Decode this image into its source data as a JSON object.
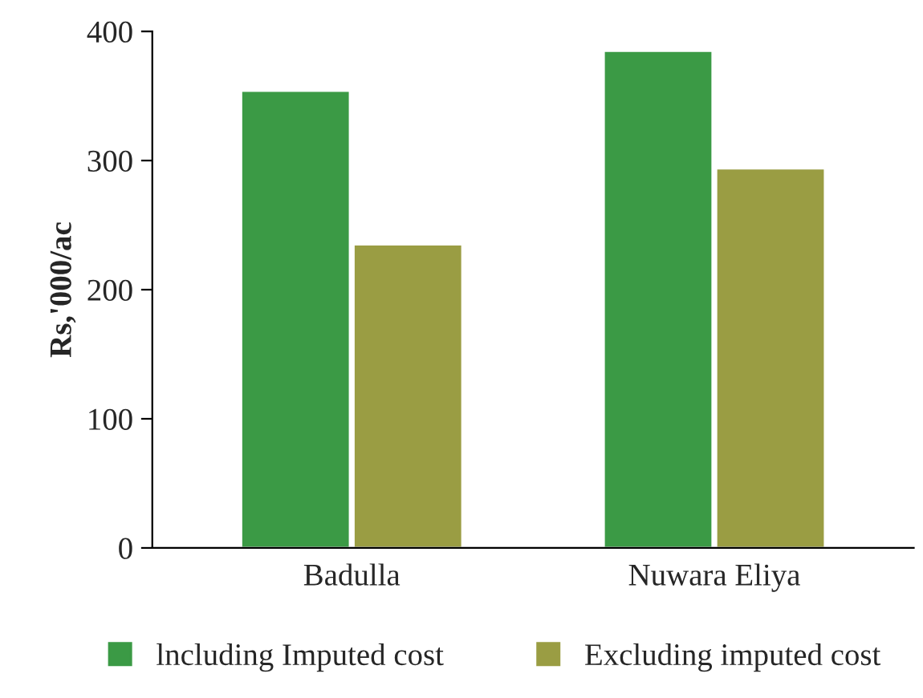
{
  "chart_data": {
    "type": "bar",
    "ylabel": "Rs,'000/ac",
    "categories": [
      "Badulla",
      "Nuwara Eliya"
    ],
    "series": [
      {
        "name": "lncluding Imputed cost",
        "color": "#3b9a45",
        "values": [
          354,
          385
        ]
      },
      {
        "name": "Excluding imputed cost",
        "color": "#9a9d43",
        "values": [
          235,
          294
        ]
      }
    ],
    "ylim": [
      0,
      400
    ],
    "yticks": [
      0,
      100,
      200,
      300,
      400
    ],
    "grid": false,
    "legend": "bottom"
  }
}
